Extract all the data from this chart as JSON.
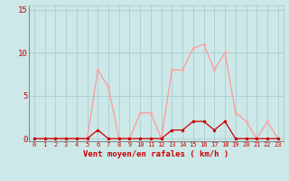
{
  "x": [
    0,
    1,
    2,
    3,
    4,
    5,
    6,
    7,
    8,
    9,
    10,
    11,
    12,
    13,
    14,
    15,
    16,
    17,
    18,
    19,
    20,
    21,
    22,
    23
  ],
  "vent_moyen": [
    0,
    0,
    0,
    0,
    0,
    0,
    1,
    0,
    0,
    0,
    0,
    0,
    0,
    1,
    1,
    2,
    2,
    1,
    2,
    0,
    0,
    0,
    0,
    0
  ],
  "rafales": [
    0,
    0,
    0,
    0,
    0,
    0,
    8,
    6,
    0,
    0,
    3,
    3,
    0,
    8,
    8,
    10.5,
    11,
    8,
    10,
    3,
    2,
    0,
    2,
    0
  ],
  "xlabel": "Vent moyen/en rafales ( km/h )",
  "yticks": [
    0,
    5,
    10,
    15
  ],
  "xticks": [
    0,
    1,
    2,
    3,
    4,
    5,
    6,
    7,
    8,
    9,
    10,
    11,
    12,
    13,
    14,
    15,
    16,
    17,
    18,
    19,
    20,
    21,
    22,
    23
  ],
  "ylim": [
    -0.3,
    15.5
  ],
  "xlim": [
    -0.5,
    23.5
  ],
  "bg_color": "#cce8e8",
  "grid_color": "#aacece",
  "line_color_moyen": "#cc0000",
  "line_color_rafales": "#ff9999",
  "marker_color_moyen": "#cc0000",
  "marker_color_rafales": "#ffaaaa",
  "tick_color": "#cc0000",
  "label_color": "#cc0000",
  "spine_color": "#888888"
}
